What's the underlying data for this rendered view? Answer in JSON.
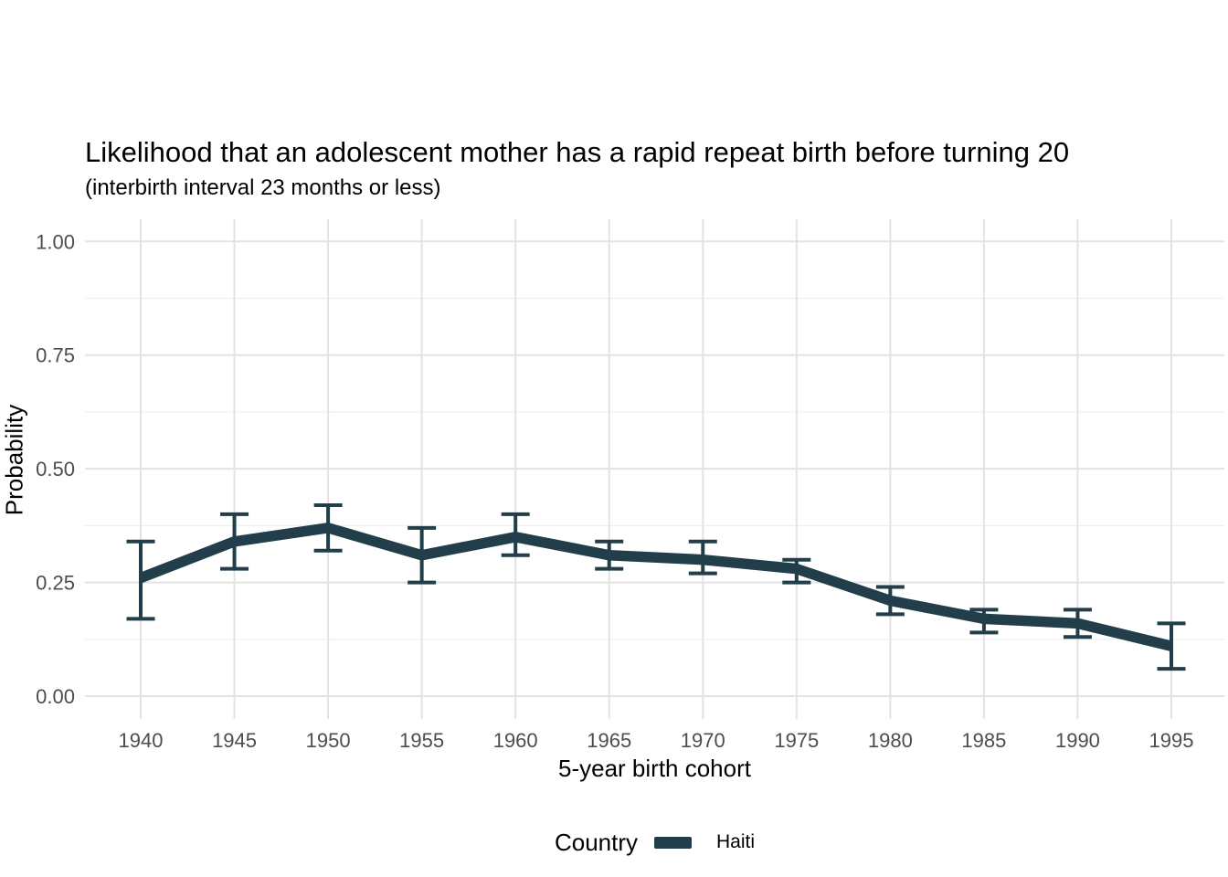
{
  "chart_data": {
    "type": "line",
    "title": "Likelihood that an adolescent mother has a rapid repeat birth before turning 20",
    "subtitle": "(interbirth interval 23 months or less)",
    "xlabel": "5-year birth cohort",
    "ylabel": "Probability",
    "x": [
      1940,
      1945,
      1950,
      1955,
      1960,
      1965,
      1970,
      1975,
      1980,
      1985,
      1990,
      1995
    ],
    "series": [
      {
        "name": "Haiti",
        "color": "#213e4a",
        "values": [
          0.26,
          0.34,
          0.37,
          0.31,
          0.35,
          0.31,
          0.3,
          0.28,
          0.21,
          0.17,
          0.16,
          0.11
        ],
        "ci_low": [
          0.17,
          0.28,
          0.32,
          0.25,
          0.31,
          0.28,
          0.27,
          0.25,
          0.18,
          0.14,
          0.13,
          0.06
        ],
        "ci_high": [
          0.34,
          0.4,
          0.42,
          0.37,
          0.4,
          0.34,
          0.34,
          0.3,
          0.24,
          0.19,
          0.19,
          0.16
        ]
      }
    ],
    "yticks": [
      0.0,
      0.25,
      0.5,
      0.75,
      1.0
    ],
    "ytick_labels": [
      "0.00",
      "0.25",
      "0.50",
      "0.75",
      "1.00"
    ],
    "y_minor_ticks": [
      0.125,
      0.375,
      0.625,
      0.875
    ],
    "ylim": [
      0,
      1
    ],
    "xlim": [
      1937,
      1998
    ],
    "grid": "major-and-minor-horizontal, major-vertical",
    "error_bars": true,
    "legend": {
      "title": "Country",
      "position": "bottom",
      "entries": [
        "Haiti"
      ]
    }
  },
  "colors": {
    "line": "#213e4a",
    "grid_major": "#e3e3e3",
    "grid_minor": "#efefef",
    "tick_text": "#4d4d4d",
    "title_text": "#000000",
    "background": "#ffffff"
  }
}
